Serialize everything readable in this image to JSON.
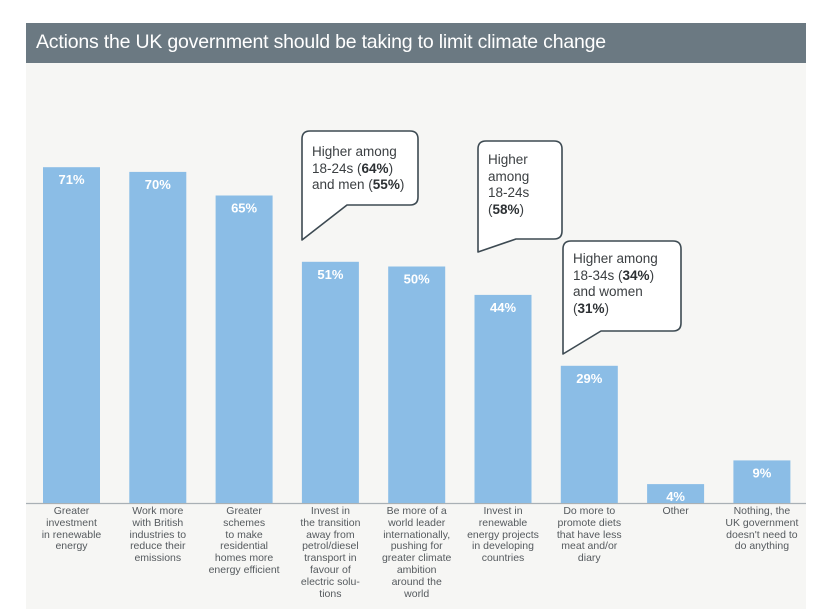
{
  "chart_data": {
    "type": "bar",
    "title": "Actions the UK government should be taking to limit climate change",
    "xlabel": "",
    "ylabel": "",
    "ylim": [
      0,
      71
    ],
    "grid": false,
    "colors": {
      "bar": "#8bbde6",
      "header": "#6b7982",
      "background": "#f6f6f4",
      "axis": "#a9b0b5",
      "callout_border": "#3d4a52"
    },
    "categories": [
      "Greater investment in renewable energy",
      "Work more with British industries to reduce their emissions",
      "Greater schemes to make residential homes more energy efficient",
      "Invest in the transition away from petrol/diesel transport in favour of electric solu-tions",
      "Be more of a world leader internationally, pushing for greater climate ambition around the world",
      "Invest in renewable energy projects in developing countries",
      "Do more to promote diets that have less meat and/or diary",
      "Other",
      "Nothing, the UK government doesn't need to do anything"
    ],
    "category_lines": [
      [
        "Greater",
        "investment",
        "in renewable",
        "energy"
      ],
      [
        "Work more",
        "with British",
        "industries to",
        "reduce their",
        "emissions"
      ],
      [
        "Greater",
        "schemes",
        "to make",
        "residential",
        "homes more",
        "energy efficient"
      ],
      [
        "Invest in",
        "the transition",
        "away from",
        "petrol/diesel",
        "transport in",
        "favour of",
        "electric solu-",
        "tions"
      ],
      [
        "Be more of a",
        "world leader",
        "internationally,",
        "pushing for",
        "greater climate",
        "ambition",
        "around the",
        "world"
      ],
      [
        "Invest in",
        "renewable",
        "energy projects",
        "in developing",
        "countries"
      ],
      [
        "Do more to",
        "promote diets",
        "that have less",
        "meat and/or",
        "diary"
      ],
      [
        "Other"
      ],
      [
        "Nothing, the",
        "UK government",
        "doesn't need to",
        "do anything"
      ]
    ],
    "values": [
      71,
      70,
      65,
      51,
      50,
      44,
      29,
      4,
      9
    ],
    "value_labels": [
      "71%",
      "70%",
      "65%",
      "51%",
      "50%",
      "44%",
      "29%",
      "4%",
      "9%"
    ],
    "annotations": [
      {
        "category_index": 3,
        "lines": [
          [
            {
              "t": "Higher among"
            }
          ],
          [
            {
              "t": "18-24s ("
            },
            {
              "t": "64%",
              "b": true
            },
            {
              "t": ")"
            }
          ],
          [
            {
              "t": "and men ("
            },
            {
              "t": "55%",
              "b": true
            },
            {
              "t": ")"
            }
          ]
        ]
      },
      {
        "category_index": 5,
        "lines": [
          [
            {
              "t": "Higher"
            }
          ],
          [
            {
              "t": "among"
            }
          ],
          [
            {
              "t": "18-24s"
            }
          ],
          [
            {
              "t": "("
            },
            {
              "t": "58%",
              "b": true
            },
            {
              "t": ")"
            }
          ]
        ]
      },
      {
        "category_index": 6,
        "lines": [
          [
            {
              "t": "Higher among"
            }
          ],
          [
            {
              "t": "18-34s ("
            },
            {
              "t": "34%",
              "b": true
            },
            {
              "t": ")"
            }
          ],
          [
            {
              "t": "and women"
            }
          ],
          [
            {
              "t": "("
            },
            {
              "t": "31%",
              "b": true
            },
            {
              "t": ")"
            }
          ]
        ]
      }
    ]
  }
}
